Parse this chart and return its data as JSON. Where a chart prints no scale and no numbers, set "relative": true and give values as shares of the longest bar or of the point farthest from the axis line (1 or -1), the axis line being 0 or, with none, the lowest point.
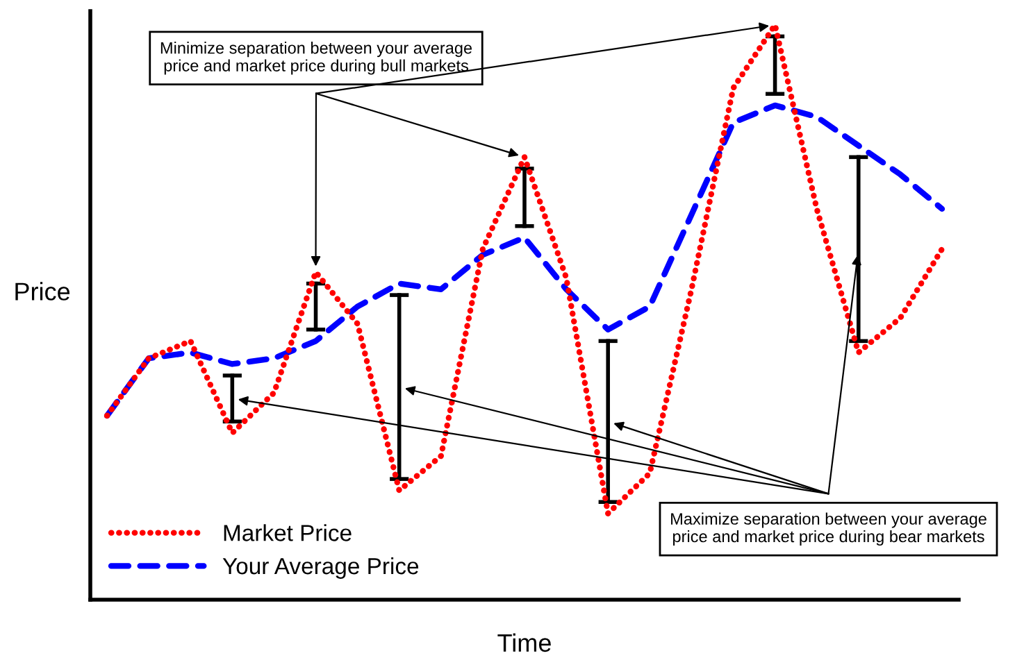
{
  "chart_data": {
    "type": "line",
    "relative": true,
    "xlabel": "Time",
    "ylabel": "Price",
    "legend": "bottom left",
    "grid": false,
    "categories": [
      null,
      null,
      null,
      null,
      null,
      null,
      null,
      null,
      null,
      null,
      null,
      null,
      null,
      null,
      null,
      null,
      null,
      null,
      null,
      null,
      null
    ],
    "series": [
      {
        "name": "Market Price",
        "color": "#ff0000",
        "line_style": "dotted",
        "values": [
          0.32,
          0.42,
          0.45,
          0.29,
          0.36,
          0.57,
          0.48,
          0.19,
          0.25,
          0.61,
          0.77,
          0.56,
          0.15,
          0.22,
          0.54,
          0.89,
          1.0,
          0.68,
          0.43,
          0.49,
          0.61
        ]
      },
      {
        "name": "Your Average Price",
        "color": "#0000ff",
        "line_style": "dashed",
        "values": [
          0.32,
          0.42,
          0.43,
          0.41,
          0.42,
          0.45,
          0.51,
          0.55,
          0.54,
          0.6,
          0.63,
          0.54,
          0.47,
          0.51,
          0.67,
          0.83,
          0.86,
          0.84,
          0.79,
          0.74,
          0.68
        ]
      }
    ],
    "annotations": [
      "Minimize separation between your average\nprice and market price during bull markets",
      "Maximize separation between your average\nprice and market price during bear markets"
    ]
  }
}
